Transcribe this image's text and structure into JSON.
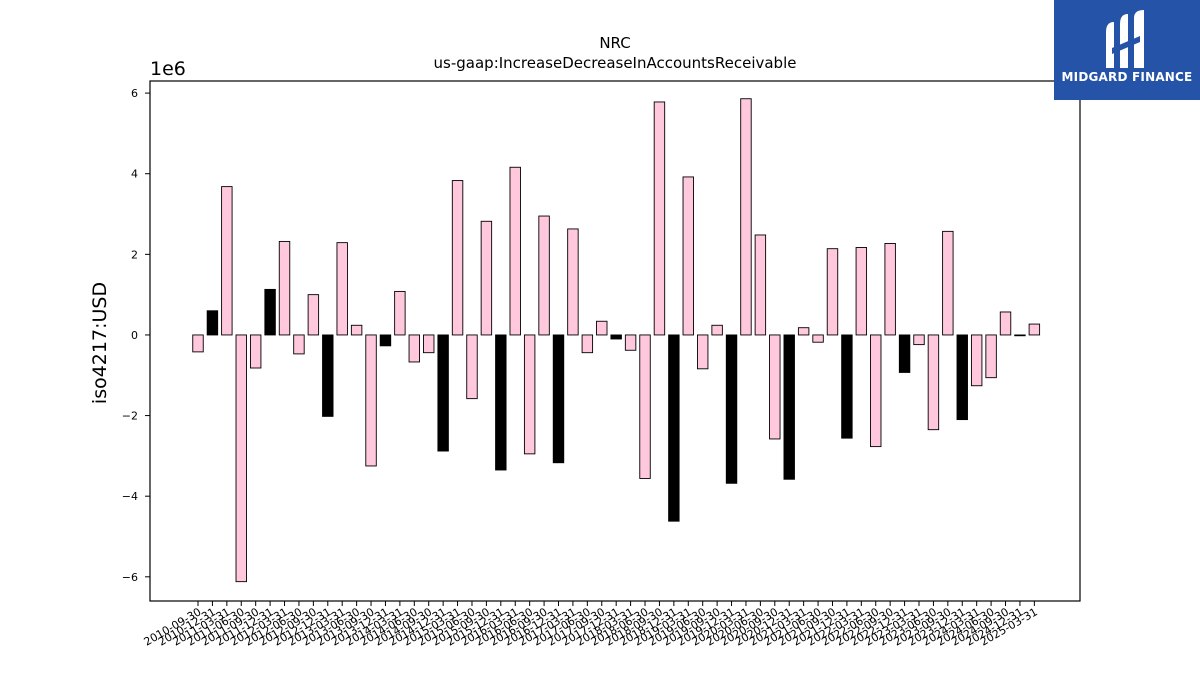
{
  "logo": {
    "text": "MIDGARD FINANCE",
    "color": "#2553a8",
    "icon": "midgard-m-logo-icon"
  },
  "colors": {
    "positive_bar": "#ffc8dd",
    "negative_bar": "#000000",
    "edge": "#000000"
  },
  "chart_data": {
    "type": "bar",
    "title": "NRC",
    "subtitle": "us-gaap:IncreaseDecreaseInAccountsReceivable",
    "xlabel": "",
    "ylabel": "iso4217:USD",
    "y_scale_label": "1e6",
    "ylim": [
      -6.6,
      6.3
    ],
    "yticks": [
      -6,
      -4,
      -2,
      0,
      2,
      4,
      6
    ],
    "ytick_labels": [
      "−6",
      "−4",
      "−2",
      "0",
      "2",
      "4",
      "6"
    ],
    "grid": false,
    "categories": [
      "2010-09-30",
      "2010-12-31",
      "2011-03-31",
      "2011-06-30",
      "2011-09-30",
      "2011-12-31",
      "2012-03-31",
      "2012-06-30",
      "2012-09-30",
      "2012-12-31",
      "2013-03-31",
      "2013-06-30",
      "2013-09-30",
      "2013-12-31",
      "2014-03-31",
      "2014-06-30",
      "2014-09-30",
      "2014-12-31",
      "2015-03-31",
      "2015-06-30",
      "2015-09-30",
      "2015-12-31",
      "2016-03-31",
      "2016-06-30",
      "2016-09-30",
      "2016-12-31",
      "2017-03-31",
      "2017-06-30",
      "2017-09-30",
      "2017-12-31",
      "2018-03-31",
      "2018-06-30",
      "2018-09-30",
      "2018-12-31",
      "2019-03-31",
      "2019-06-30",
      "2019-09-30",
      "2019-12-31",
      "2020-03-31",
      "2020-06-30",
      "2020-09-30",
      "2020-12-31",
      "2021-03-31",
      "2021-06-30",
      "2021-09-30",
      "2021-12-31",
      "2022-03-31",
      "2022-06-30",
      "2022-09-30",
      "2022-12-31",
      "2023-03-31",
      "2023-06-30",
      "2023-09-30",
      "2023-12-31",
      "2024-03-31",
      "2024-06-30",
      "2024-09-30",
      "2024-12-31",
      "2025-03-31"
    ],
    "values": [
      -0.42,
      0.6,
      3.68,
      -6.12,
      -0.82,
      1.13,
      2.32,
      -0.47,
      1.0,
      -2.02,
      2.29,
      0.24,
      -3.25,
      -0.27,
      1.08,
      -0.67,
      -0.44,
      -2.88,
      3.83,
      -1.58,
      2.82,
      -3.35,
      4.16,
      -2.95,
      2.95,
      -3.17,
      2.63,
      -0.44,
      0.34,
      -0.1,
      -0.38,
      -3.56,
      5.78,
      -4.62,
      3.92,
      -0.84,
      0.24,
      -3.68,
      5.86,
      2.48,
      -2.58,
      -3.58,
      0.18,
      -0.18,
      2.14,
      -2.56,
      2.17,
      -2.77,
      2.27,
      -0.93,
      -0.24,
      -2.35,
      2.57,
      -2.1,
      -1.26,
      -1.06,
      0.57,
      -0.02,
      0.27
    ],
    "bar_fill": [
      "pink",
      "black",
      "pink",
      "pink",
      "pink",
      "black",
      "pink",
      "pink",
      "pink",
      "black",
      "pink",
      "pink",
      "pink",
      "black",
      "pink",
      "pink",
      "pink",
      "black",
      "pink",
      "pink",
      "pink",
      "black",
      "pink",
      "pink",
      "pink",
      "black",
      "pink",
      "pink",
      "pink",
      "black",
      "pink",
      "pink",
      "pink",
      "black",
      "pink",
      "pink",
      "pink",
      "black",
      "pink",
      "pink",
      "pink",
      "black",
      "pink",
      "pink",
      "pink",
      "black",
      "pink",
      "pink",
      "pink",
      "black",
      "pink",
      "pink",
      "pink",
      "black",
      "pink",
      "pink",
      "pink",
      "black",
      "pink"
    ]
  }
}
